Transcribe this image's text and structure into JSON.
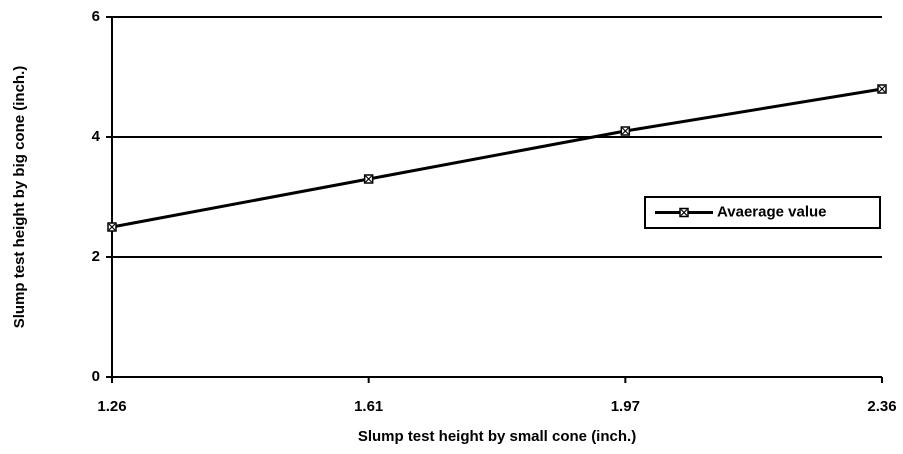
{
  "chart_data": {
    "type": "line",
    "x_label": "Slump test height by small cone (inch.)",
    "y_label": "Slump test height by big cone (inch.)",
    "categories": [
      "1.26",
      "1.61",
      "1.97",
      "2.36"
    ],
    "series": [
      {
        "name": "Avaerage value",
        "color": "#000000",
        "values": [
          2.5,
          3.3,
          4.1,
          4.8
        ]
      }
    ],
    "ylim": [
      0,
      6
    ],
    "yticks": [
      0,
      2,
      4,
      6
    ],
    "grid": true,
    "legend": "right"
  }
}
